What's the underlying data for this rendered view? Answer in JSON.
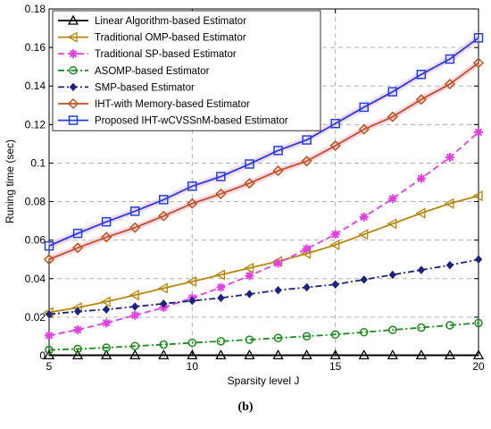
{
  "caption": "(b)",
  "chart_data": {
    "type": "line",
    "xlabel": "Sparsity level J",
    "ylabel": "Runing time (sec)",
    "xlim": [
      5,
      20
    ],
    "ylim": [
      0,
      0.18
    ],
    "xticks": [
      5,
      10,
      15,
      20
    ],
    "yticks": [
      0,
      0.02,
      0.04,
      0.06,
      0.08,
      0.1,
      0.12,
      0.14,
      0.16,
      0.18
    ],
    "ytick_labels": [
      "0",
      "0.02",
      "0.04",
      "0.06",
      "0.08",
      "0.1",
      "0.12",
      "0.14",
      "0.16",
      "0.18"
    ],
    "grid": true,
    "legend_position": "top-left",
    "x": [
      5,
      6,
      7,
      8,
      9,
      10,
      11,
      12,
      13,
      14,
      15,
      16,
      17,
      18,
      19,
      20
    ],
    "series": [
      {
        "name": "Linear Algorithm-based Estimator",
        "color": "#000000",
        "marker": "triangle-up",
        "dash": "solid",
        "values": [
          0.0003,
          0.0003,
          0.0003,
          0.0003,
          0.0003,
          0.0003,
          0.0003,
          0.0003,
          0.0003,
          0.0003,
          0.0003,
          0.0003,
          0.0003,
          0.0003,
          0.0003,
          0.0003
        ]
      },
      {
        "name": "Traditional OMP-based Estimator",
        "color": "#b8860b",
        "marker": "triangle-left",
        "dash": "solid",
        "values": [
          0.0225,
          0.025,
          0.028,
          0.0315,
          0.035,
          0.0385,
          0.042,
          0.0455,
          0.049,
          0.053,
          0.0575,
          0.063,
          0.0685,
          0.074,
          0.079,
          0.083
        ]
      },
      {
        "name": "Traditional SP-based Estimator",
        "color": "#e040e0",
        "marker": "star",
        "dash": "dashed",
        "values": [
          0.0105,
          0.0135,
          0.017,
          0.021,
          0.025,
          0.03,
          0.0355,
          0.0415,
          0.048,
          0.0555,
          0.063,
          0.072,
          0.0815,
          0.092,
          0.103,
          0.116
        ]
      },
      {
        "name": "ASOMP-based Estimator",
        "color": "#1a8a1a",
        "marker": "circle",
        "dash": "dashdot",
        "values": [
          0.003,
          0.0035,
          0.0042,
          0.005,
          0.0058,
          0.0067,
          0.0075,
          0.0083,
          0.0092,
          0.0101,
          0.011,
          0.0122,
          0.0134,
          0.0146,
          0.0158,
          0.017
        ]
      },
      {
        "name": "SMP-based Estimator",
        "color": "#1a237e",
        "marker": "diamond-filled",
        "dash": "dashdot",
        "values": [
          0.0215,
          0.023,
          0.024,
          0.0255,
          0.027,
          0.0285,
          0.03,
          0.032,
          0.034,
          0.0355,
          0.037,
          0.0395,
          0.042,
          0.0445,
          0.047,
          0.05
        ]
      },
      {
        "name": "IHT-with Memory-based Estimator",
        "color": "#c0521a",
        "marker": "diamond",
        "dash": "solid",
        "values": [
          0.05,
          0.056,
          0.0615,
          0.0665,
          0.0725,
          0.079,
          0.084,
          0.0895,
          0.096,
          0.101,
          0.109,
          0.1175,
          0.124,
          0.133,
          0.141,
          0.152
        ]
      },
      {
        "name": "Proposed IHT-wCVSSnM-based Estimator",
        "color": "#1f3fe0",
        "marker": "square",
        "dash": "solid",
        "values": [
          0.057,
          0.0635,
          0.0695,
          0.075,
          0.081,
          0.088,
          0.093,
          0.0995,
          0.1065,
          0.112,
          0.1205,
          0.129,
          0.137,
          0.146,
          0.154,
          0.165
        ]
      }
    ]
  }
}
